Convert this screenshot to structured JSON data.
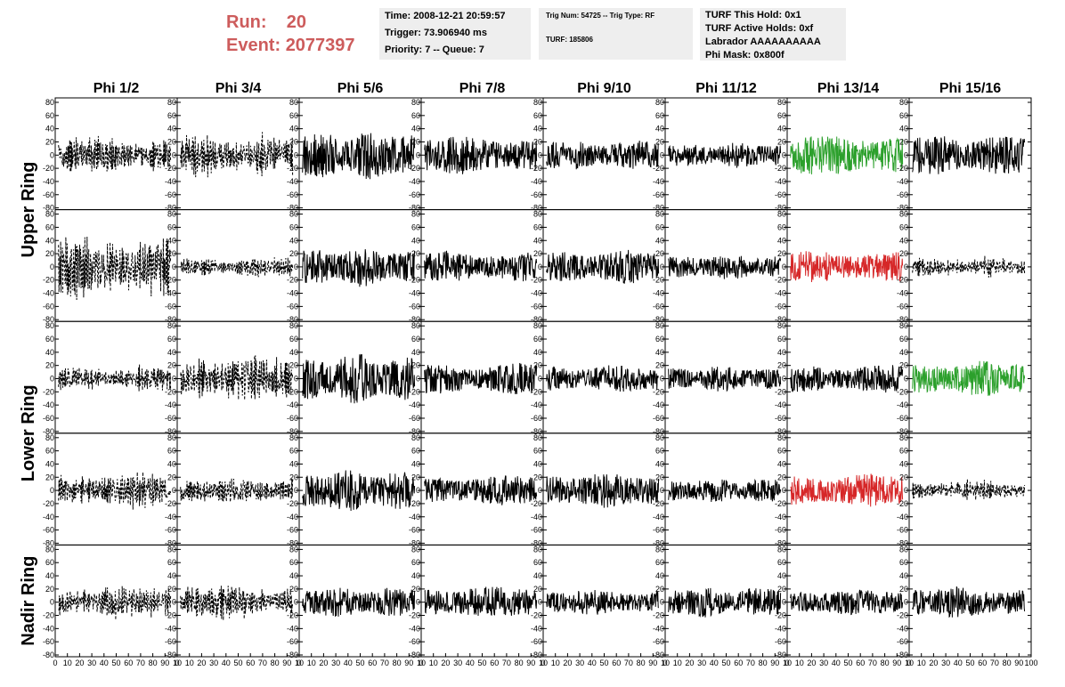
{
  "header": {
    "run_label": "Run:",
    "run_value": "20",
    "event_label": "Event:",
    "event_value": "2077397"
  },
  "info_box_1": {
    "time": "Time: 2008-12-21 20:59:57",
    "trigger": "Trigger: 73.906940 ms",
    "priority": "Priority: 7 -- Queue: 7"
  },
  "info_box_2": {
    "trig": "Trig Num: 54725 -- Trig Type: RF",
    "turf": "TURF: 185806"
  },
  "info_box_3": {
    "this_hold": "TURF This Hold: 0x1",
    "active_holds": "TURF Active Holds: 0xf",
    "labrador": "Labrador AAAAAAAAAA",
    "phi_mask": "Phi Mask: 0x800f"
  },
  "colors": {
    "background": "#ffffff",
    "header_red": "#cd5c5c",
    "info_box_bg": "#eeeeee",
    "trace_default": "#000000",
    "trace_triggered_top": "#2ca02c",
    "trace_triggered_bottom": "#d62728"
  },
  "chart_data": {
    "type": "line",
    "layout": "grid of waveform panels, 5 rows x 8 columns",
    "column_titles": [
      "Phi 1/2",
      "Phi 3/4",
      "Phi 5/6",
      "Phi 7/8",
      "Phi 9/10",
      "Phi 11/12",
      "Phi 13/14",
      "Phi 15/16"
    ],
    "ring_labels": [
      "Upper Ring",
      "Lower Ring",
      "Nadir Ring"
    ],
    "ring_row_spans": [
      [
        0,
        1
      ],
      [
        2,
        3
      ],
      [
        4,
        4
      ]
    ],
    "ylim": [
      -80,
      80
    ],
    "y_ticks": [
      -80,
      -60,
      -40,
      -20,
      0,
      20,
      40,
      60,
      80
    ],
    "xlim": [
      0,
      100
    ],
    "x_tick_labels": [
      "0",
      "10",
      "20",
      "30",
      "40",
      "50",
      "60",
      "70",
      "80",
      "90",
      "10"
    ],
    "x_tick_labels_last_panel": [
      "0",
      "10",
      "20",
      "30",
      "40",
      "50",
      "60",
      "70",
      "80",
      "90",
      "100"
    ],
    "samples_per_trace": 260,
    "trace_style_grid": [
      [
        "dashed",
        "dashed",
        "solid",
        "solid",
        "solid",
        "solid",
        "green",
        "solid"
      ],
      [
        "dashed",
        "dashed",
        "solid",
        "solid",
        "solid",
        "solid",
        "red",
        "dashed"
      ],
      [
        "dashed",
        "dashed",
        "solid",
        "solid",
        "solid",
        "solid",
        "solid",
        "green"
      ],
      [
        "dashed",
        "dashed",
        "solid",
        "solid",
        "solid",
        "solid",
        "red",
        "dashed"
      ],
      [
        "dashed",
        "dashed",
        "solid",
        "solid",
        "solid",
        "solid",
        "solid",
        "solid"
      ]
    ],
    "trace_amplitude_grid": [
      [
        40,
        45,
        35,
        28,
        22,
        18,
        30,
        30
      ],
      [
        75,
        22,
        28,
        25,
        25,
        18,
        25,
        22
      ],
      [
        28,
        48,
        35,
        25,
        20,
        18,
        22,
        25
      ],
      [
        40,
        30,
        30,
        22,
        25,
        18,
        25,
        22
      ],
      [
        35,
        38,
        22,
        22,
        18,
        22,
        18,
        22
      ]
    ]
  }
}
